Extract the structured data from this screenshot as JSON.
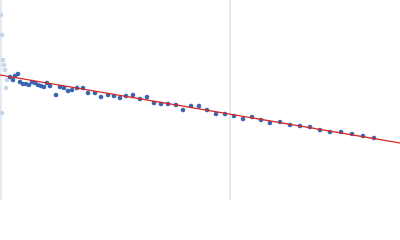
{
  "chart_data": {
    "type": "scatter",
    "xlim": [
      0,
      400
    ],
    "ylim": [
      0,
      200
    ],
    "vline": 230,
    "series": [
      {
        "color": "#c6d5ea",
        "x": [
          1,
          2,
          3,
          4,
          5,
          6,
          2,
          7
        ],
        "values": [
          185,
          165,
          140,
          135,
          130,
          112,
          87,
          120
        ]
      },
      {
        "color": "#3a66b0",
        "x": [
          10,
          13,
          15,
          18,
          20,
          23,
          26,
          29,
          32,
          35,
          38,
          41,
          44,
          47,
          50,
          56,
          60,
          64,
          68,
          72,
          77,
          83,
          88,
          95,
          101,
          108,
          114,
          120,
          126,
          133,
          140,
          147,
          154,
          161,
          168,
          176,
          183,
          191,
          199,
          207,
          216,
          225,
          234,
          243,
          252,
          261,
          270,
          280,
          290,
          300,
          310,
          320,
          330,
          341,
          352,
          363,
          374
        ],
        "values": [
          123,
          120,
          124,
          126,
          118,
          116,
          116,
          115,
          118,
          117,
          115,
          114,
          113,
          117,
          114,
          105,
          113,
          112,
          109,
          110,
          112,
          112,
          107,
          107,
          103,
          105,
          104,
          102,
          104,
          105,
          101,
          103,
          97,
          96,
          96,
          95,
          90,
          94,
          94,
          90,
          86,
          86,
          84,
          81,
          83,
          80,
          77,
          78,
          75,
          74,
          73,
          70,
          68,
          68,
          66,
          64,
          62
        ]
      }
    ],
    "fit": {
      "color": "#d62728",
      "x": [
        0,
        400
      ],
      "values": [
        125,
        57
      ]
    }
  }
}
